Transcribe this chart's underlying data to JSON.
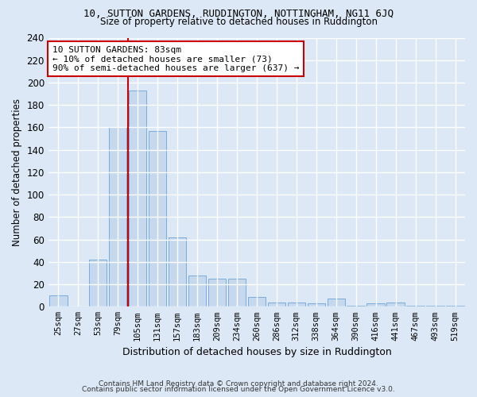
{
  "title1": "10, SUTTON GARDENS, RUDDINGTON, NOTTINGHAM, NG11 6JQ",
  "title2": "Size of property relative to detached houses in Ruddington",
  "xlabel": "Distribution of detached houses by size in Ruddington",
  "ylabel": "Number of detached properties",
  "categories": [
    "25sqm",
    "27sqm",
    "53sqm",
    "79sqm",
    "105sqm",
    "131sqm",
    "157sqm",
    "183sqm",
    "209sqm",
    "234sqm",
    "260sqm",
    "286sqm",
    "312sqm",
    "338sqm",
    "364sqm",
    "390sqm",
    "416sqm",
    "441sqm",
    "467sqm",
    "493sqm",
    "519sqm"
  ],
  "values": [
    10,
    0,
    42,
    160,
    193,
    157,
    62,
    28,
    25,
    25,
    9,
    4,
    4,
    3,
    7,
    1,
    3,
    4,
    1,
    1,
    1
  ],
  "bar_color": "#c5d8ee",
  "bar_edge_color": "#7aacda",
  "vline_pos": 3.5,
  "vline_color": "#cc0000",
  "ylim": [
    0,
    240
  ],
  "yticks": [
    0,
    20,
    40,
    60,
    80,
    100,
    120,
    140,
    160,
    180,
    200,
    220,
    240
  ],
  "annotation_text": "10 SUTTON GARDENS: 83sqm\n← 10% of detached houses are smaller (73)\n90% of semi-detached houses are larger (637) →",
  "annotation_box_color": "#ffffff",
  "annotation_box_edge": "#cc0000",
  "footer1": "Contains HM Land Registry data © Crown copyright and database right 2024.",
  "footer2": "Contains public sector information licensed under the Open Government Licence v3.0.",
  "bg_color": "#dce8f5",
  "plot_bg_color": "#dce8f5"
}
